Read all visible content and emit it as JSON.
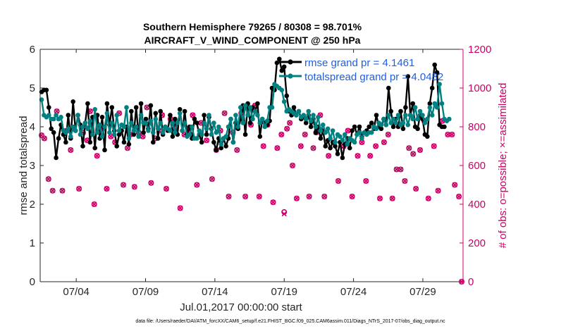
{
  "chart_data": {
    "type": "line",
    "title": "Southern Hemisphere 79265 / 80308 = 98.701%",
    "subtitle": "AIRCRAFT_V_WIND_COMPONENT @ 250 hPa",
    "xlabel": "Jul.01,2017 00:00:00 start",
    "ylabel": "rmse and totalspread",
    "y2label": "# of obs: o=possible; ×=assimilated",
    "xlim": [
      1.4,
      31.9
    ],
    "ylim": [
      0,
      6
    ],
    "y2lim": [
      0,
      1200
    ],
    "x_tick_labels": [
      "07/04",
      "07/09",
      "07/14",
      "07/19",
      "07/24",
      "07/29"
    ],
    "x_tick_positions": [
      4,
      9,
      14,
      19,
      24,
      29
    ],
    "y_tick_labels": [
      "0",
      "1",
      "2",
      "3",
      "4",
      "5",
      "6"
    ],
    "y2_tick_labels": [
      "0",
      "200",
      "400",
      "600",
      "800",
      "1000",
      "1200"
    ],
    "footer": "data file: /Users/raeder/DAI/ATM_forcXX/CAM6_setup/f.e21.FHIST_BGC.f09_025.CAM6assim.011/Diags_NTrS_2017-07/obs_diag_output.nc",
    "colors": {
      "rmse": "#000000",
      "spread": "#008080",
      "obs": "#cc0066",
      "legend_text": "#1f5fe0"
    },
    "series": [
      {
        "name": "rmse grand pr = 4.1461",
        "legend_label": "rmse grand pr = 4.1461",
        "values": [
          4.9,
          4.95,
          4.95,
          4.5,
          3.95,
          3.85,
          3.2,
          3.7,
          4.05,
          3.8,
          3.6,
          4.3,
          3.7,
          4.65,
          3.9,
          4.3,
          4.05,
          3.5,
          4.1,
          4.6,
          3.6,
          4.25,
          3.45,
          4.3,
          3.7,
          4.25,
          3.4,
          4.6,
          4.05,
          4.5,
          3.9,
          3.5,
          3.8,
          3.9,
          3.6,
          4.0,
          3.55,
          4.4,
          3.8,
          4.5,
          3.75,
          4.6,
          3.85,
          4.2,
          3.95,
          4.55,
          3.6,
          4.35,
          3.7,
          4.4,
          3.8,
          4.0,
          3.9,
          4.3,
          3.75,
          4.2,
          3.8,
          4.45,
          3.9,
          4.4,
          3.8,
          4.0,
          3.7,
          4.2,
          4.1,
          3.8,
          3.6,
          4.3,
          3.8,
          4.25,
          3.95,
          3.6,
          3.4,
          3.7,
          3.45,
          3.7,
          3.5,
          3.7,
          4.2,
          3.6,
          4.1,
          3.95,
          4.2,
          4.55,
          3.8,
          4.6,
          4.1,
          4.5,
          4.4,
          4.6,
          3.75,
          4.2,
          4.1,
          4.05,
          4.15,
          5.0,
          4.95,
          5.65,
          5.75,
          5.45,
          5.55,
          4.8,
          4.4,
          4.3,
          4.5,
          4.3,
          4.4,
          4.2,
          4.25,
          4.1,
          4.3,
          4.0,
          4.2,
          3.85,
          4.0,
          3.7,
          3.9,
          3.5,
          3.65,
          3.45,
          3.6,
          3.5,
          3.3,
          3.6,
          3.2,
          3.55,
          3.7,
          3.45,
          3.9,
          4.0,
          3.8,
          4.0,
          3.75,
          3.85,
          3.9,
          4.0,
          4.1,
          3.95,
          4.3,
          4.0,
          3.95,
          4.2,
          4.05,
          5.0,
          4.4,
          4.0,
          4.2,
          4.0,
          4.4,
          3.95,
          4.5,
          5.3,
          4.3,
          4.6,
          4.0,
          3.95,
          4.3,
          4.2,
          3.8,
          3.75,
          4.6,
          5.0,
          5.6,
          5.4,
          4.05,
          4.0,
          4.0
        ]
      },
      {
        "name": "totalspread grand pr = 4.0482",
        "legend_label": "totalspread grand pr = 4.0482",
        "values": [
          4.7,
          4.3,
          4.25,
          4.3,
          4.2,
          4.2,
          4.3,
          4.2,
          4.25,
          3.9,
          3.85,
          3.95,
          3.75,
          4.0,
          3.9,
          4.3,
          3.8,
          4.0,
          4.1,
          3.95,
          4.15,
          3.8,
          4.45,
          3.85,
          4.05,
          3.75,
          4.0,
          4.35,
          3.85,
          4.1,
          3.8,
          4.3,
          3.9,
          4.05,
          4.0,
          4.5,
          3.7,
          4.1,
          3.9,
          4.0,
          3.75,
          4.3,
          4.1,
          4.1,
          3.9,
          4.15,
          3.85,
          4.2,
          3.95,
          4.1,
          3.85,
          4.0,
          3.95,
          3.9,
          4.1,
          3.85,
          4.1,
          4.35,
          3.9,
          4.1,
          3.75,
          3.8,
          4.0,
          3.7,
          3.7,
          3.9,
          3.8,
          4.1,
          3.95,
          4.3,
          3.8,
          4.1,
          3.85,
          4.0,
          3.55,
          3.7,
          3.75,
          4.0,
          4.2,
          3.6,
          4.3,
          4.0,
          4.5,
          4.1,
          4.55,
          4.3,
          4.5,
          4.2,
          4.4,
          4.3,
          4.1,
          4.2,
          4.0,
          4.15,
          4.5,
          4.5,
          5.1,
          5.05,
          5.0,
          4.95,
          4.65,
          4.4,
          4.45,
          4.4,
          4.35,
          4.3,
          4.4,
          4.25,
          4.3,
          4.2,
          4.4,
          4.15,
          4.3,
          4.0,
          4.25,
          3.9,
          4.05,
          3.85,
          3.95,
          3.7,
          3.9,
          3.6,
          3.8,
          3.75,
          3.65,
          3.8,
          3.55,
          3.7,
          3.65,
          3.6,
          3.8,
          3.85,
          3.7,
          3.85,
          3.8,
          3.85,
          3.85,
          4.0,
          3.95,
          4.1,
          4.05,
          4.2,
          4.05,
          4.3,
          4.1,
          4.2,
          4.1,
          4.3,
          4.05,
          4.1,
          4.3,
          4.05,
          4.3,
          4.2,
          4.5,
          4.2,
          4.4,
          4.3,
          4.1,
          4.2,
          4.5,
          4.3,
          4.6,
          4.5,
          5.1,
          4.6,
          4.2,
          4.15,
          4.2
        ]
      }
    ],
    "obs_possible": [
      [
        1.5,
        756
      ],
      [
        1.7,
        740
      ],
      [
        2.0,
        530
      ],
      [
        2.3,
        470
      ],
      [
        2.6,
        880
      ],
      [
        3.0,
        470
      ],
      [
        3.3,
        780
      ],
      [
        3.6,
        680
      ],
      [
        3.8,
        790
      ],
      [
        4.2,
        480
      ],
      [
        4.5,
        770
      ],
      [
        4.8,
        730
      ],
      [
        5.0,
        880
      ],
      [
        5.3,
        400
      ],
      [
        5.5,
        650
      ],
      [
        5.9,
        790
      ],
      [
        6.2,
        480
      ],
      [
        6.5,
        750
      ],
      [
        6.8,
        720
      ],
      [
        7.1,
        870
      ],
      [
        7.4,
        500
      ],
      [
        7.7,
        690
      ],
      [
        7.9,
        760
      ],
      [
        8.2,
        490
      ],
      [
        8.5,
        770
      ],
      [
        8.8,
        750
      ],
      [
        9.1,
        900
      ],
      [
        9.4,
        510
      ],
      [
        9.7,
        740
      ],
      [
        10.0,
        780
      ],
      [
        10.2,
        860
      ],
      [
        10.5,
        480
      ],
      [
        10.8,
        840
      ],
      [
        11.1,
        790
      ],
      [
        11.5,
        380
      ],
      [
        11.8,
        760
      ],
      [
        12.1,
        780
      ],
      [
        12.4,
        860
      ],
      [
        12.7,
        500
      ],
      [
        13.0,
        820
      ],
      [
        13.4,
        730
      ],
      [
        13.8,
        530
      ],
      [
        14.1,
        680
      ],
      [
        14.4,
        780
      ],
      [
        14.7,
        870
      ],
      [
        15.0,
        440
      ],
      [
        15.3,
        770
      ],
      [
        15.6,
        680
      ],
      [
        15.9,
        870
      ],
      [
        16.2,
        440
      ],
      [
        16.6,
        810
      ],
      [
        16.9,
        910
      ],
      [
        17.2,
        440
      ],
      [
        17.5,
        700
      ],
      [
        17.8,
        810
      ],
      [
        18.2,
        410
      ],
      [
        18.5,
        690
      ],
      [
        18.8,
        760
      ],
      [
        19.0,
        360
      ],
      [
        19.2,
        790
      ],
      [
        19.4,
        820
      ],
      [
        19.6,
        600
      ],
      [
        19.9,
        430
      ],
      [
        20.2,
        700
      ],
      [
        20.5,
        760
      ],
      [
        20.8,
        440
      ],
      [
        21.1,
        690
      ],
      [
        21.3,
        770
      ],
      [
        21.6,
        860
      ],
      [
        21.9,
        440
      ],
      [
        22.2,
        650
      ],
      [
        22.6,
        720
      ],
      [
        22.9,
        520
      ],
      [
        23.3,
        700
      ],
      [
        23.6,
        780
      ],
      [
        23.9,
        440
      ],
      [
        24.3,
        650
      ],
      [
        24.6,
        720
      ],
      [
        24.9,
        520
      ],
      [
        25.2,
        650
      ],
      [
        25.6,
        700
      ],
      [
        25.9,
        430
      ],
      [
        26.2,
        720
      ],
      [
        26.5,
        760
      ],
      [
        26.8,
        430
      ],
      [
        27.1,
        580
      ],
      [
        27.4,
        580
      ],
      [
        27.7,
        520
      ],
      [
        28.0,
        690
      ],
      [
        28.3,
        660
      ],
      [
        28.5,
        480
      ],
      [
        28.8,
        680
      ],
      [
        29.1,
        830
      ],
      [
        29.4,
        430
      ],
      [
        29.8,
        700
      ],
      [
        30.1,
        470
      ],
      [
        30.4,
        830
      ],
      [
        30.8,
        760
      ],
      [
        31.1,
        760
      ],
      [
        31.3,
        500
      ],
      [
        31.6,
        440
      ],
      [
        31.8,
        0
      ]
    ],
    "obs_assimilated": [
      [
        1.5,
        756
      ],
      [
        1.7,
        740
      ],
      [
        2.0,
        530
      ],
      [
        2.3,
        470
      ],
      [
        2.6,
        880
      ],
      [
        3.0,
        470
      ],
      [
        3.3,
        780
      ],
      [
        3.6,
        680
      ],
      [
        3.8,
        790
      ],
      [
        4.2,
        480
      ],
      [
        4.5,
        770
      ],
      [
        4.8,
        730
      ],
      [
        5.0,
        880
      ],
      [
        5.3,
        400
      ],
      [
        5.5,
        650
      ],
      [
        5.9,
        790
      ],
      [
        6.2,
        480
      ],
      [
        6.5,
        750
      ],
      [
        6.8,
        720
      ],
      [
        7.1,
        870
      ],
      [
        7.4,
        500
      ],
      [
        7.7,
        690
      ],
      [
        7.9,
        760
      ],
      [
        8.2,
        490
      ],
      [
        8.5,
        770
      ],
      [
        8.8,
        750
      ],
      [
        9.1,
        900
      ],
      [
        9.4,
        510
      ],
      [
        9.7,
        740
      ],
      [
        10.0,
        780
      ],
      [
        10.2,
        860
      ],
      [
        10.5,
        480
      ],
      [
        10.8,
        840
      ],
      [
        11.1,
        790
      ],
      [
        11.5,
        380
      ],
      [
        11.8,
        760
      ],
      [
        12.1,
        780
      ],
      [
        12.4,
        860
      ],
      [
        12.7,
        500
      ],
      [
        13.0,
        820
      ],
      [
        13.4,
        730
      ],
      [
        13.8,
        530
      ],
      [
        14.1,
        680
      ],
      [
        14.4,
        780
      ],
      [
        14.7,
        870
      ],
      [
        15.0,
        440
      ],
      [
        15.3,
        770
      ],
      [
        15.6,
        680
      ],
      [
        15.9,
        870
      ],
      [
        16.2,
        440
      ],
      [
        16.6,
        810
      ],
      [
        16.9,
        910
      ],
      [
        17.2,
        440
      ],
      [
        17.5,
        700
      ],
      [
        17.8,
        810
      ],
      [
        18.2,
        410
      ],
      [
        18.5,
        690
      ],
      [
        18.8,
        760
      ],
      [
        19.0,
        350
      ],
      [
        19.2,
        790
      ],
      [
        19.4,
        820
      ],
      [
        19.6,
        600
      ],
      [
        19.9,
        430
      ],
      [
        20.2,
        700
      ],
      [
        20.5,
        760
      ],
      [
        20.8,
        440
      ],
      [
        21.1,
        690
      ],
      [
        21.3,
        770
      ],
      [
        21.6,
        860
      ],
      [
        21.9,
        440
      ],
      [
        22.2,
        650
      ],
      [
        22.6,
        720
      ],
      [
        22.9,
        520
      ],
      [
        23.3,
        700
      ],
      [
        23.6,
        780
      ],
      [
        23.9,
        440
      ],
      [
        24.3,
        650
      ],
      [
        24.6,
        720
      ],
      [
        24.9,
        520
      ],
      [
        25.2,
        650
      ],
      [
        25.6,
        700
      ],
      [
        25.9,
        430
      ],
      [
        26.2,
        720
      ],
      [
        26.5,
        760
      ],
      [
        26.8,
        430
      ],
      [
        27.1,
        580
      ],
      [
        27.4,
        580
      ],
      [
        27.7,
        520
      ],
      [
        28.0,
        690
      ],
      [
        28.3,
        660
      ],
      [
        28.5,
        480
      ],
      [
        28.8,
        680
      ],
      [
        29.1,
        830
      ],
      [
        29.4,
        430
      ],
      [
        29.8,
        700
      ],
      [
        30.1,
        470
      ],
      [
        30.4,
        830
      ],
      [
        30.8,
        760
      ],
      [
        31.1,
        760
      ],
      [
        31.3,
        500
      ],
      [
        31.6,
        440
      ],
      [
        31.8,
        0
      ]
    ]
  }
}
